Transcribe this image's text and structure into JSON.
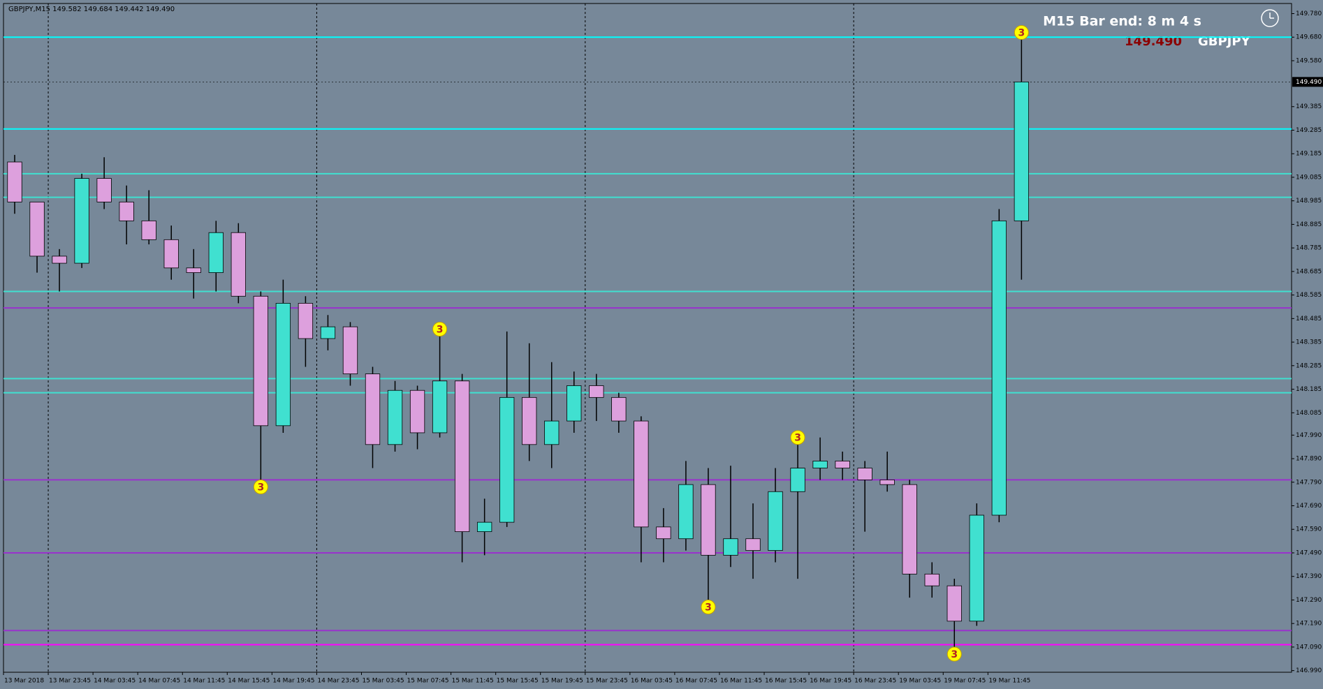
{
  "chart_data": {
    "type": "candlestick",
    "title": "GBPJPY,M15  149.582 149.684 149.442 149.490",
    "timer": "M15 Bar end: 8 m 4 s",
    "symbol": "GBPJPY",
    "current_price": {
      "value": 149.49,
      "label": "149.490"
    },
    "up_color": "#40e0d0",
    "down_color": "#dda0dd",
    "background": "#778899",
    "ylim": [
      146.983,
      149.823
    ],
    "yticks": [
      {
        "value": 149.78,
        "label": "149.780"
      },
      {
        "value": 149.68,
        "label": "149.680"
      },
      {
        "value": 149.58,
        "label": "149.580"
      },
      {
        "value": 149.385,
        "label": "149.385"
      },
      {
        "value": 149.285,
        "label": "149.285"
      },
      {
        "value": 149.185,
        "label": "149.185"
      },
      {
        "value": 149.085,
        "label": "149.085"
      },
      {
        "value": 148.985,
        "label": "148.985"
      },
      {
        "value": 148.885,
        "label": "148.885"
      },
      {
        "value": 148.785,
        "label": "148.785"
      },
      {
        "value": 148.685,
        "label": "148.685"
      },
      {
        "value": 148.585,
        "label": "148.585"
      },
      {
        "value": 148.485,
        "label": "148.485"
      },
      {
        "value": 148.385,
        "label": "148.385"
      },
      {
        "value": 148.285,
        "label": "148.285"
      },
      {
        "value": 148.185,
        "label": "148.185"
      },
      {
        "value": 148.085,
        "label": "148.085"
      },
      {
        "value": 147.99,
        "label": "147.990"
      },
      {
        "value": 147.89,
        "label": "147.890"
      },
      {
        "value": 147.79,
        "label": "147.790"
      },
      {
        "value": 147.69,
        "label": "147.690"
      },
      {
        "value": 147.59,
        "label": "147.590"
      },
      {
        "value": 147.49,
        "label": "147.490"
      },
      {
        "value": 147.39,
        "label": "147.390"
      },
      {
        "value": 147.29,
        "label": "147.290"
      },
      {
        "value": 147.19,
        "label": "147.190"
      },
      {
        "value": 147.09,
        "label": "147.090"
      },
      {
        "value": 146.99,
        "label": "146.990"
      }
    ],
    "time_labels": [
      "13 Mar 2018",
      "13 Mar 23:45",
      "14 Mar 03:45",
      "14 Mar 07:45",
      "14 Mar 11:45",
      "14 Mar 15:45",
      "14 Mar 19:45",
      "14 Mar 23:45",
      "15 Mar 03:45",
      "15 Mar 07:45",
      "15 Mar 11:45",
      "15 Mar 15:45",
      "15 Mar 19:45",
      "15 Mar 23:45",
      "16 Mar 03:45",
      "16 Mar 07:45",
      "16 Mar 11:45",
      "16 Mar 15:45",
      "16 Mar 19:45",
      "16 Mar 23:45",
      "19 Mar 03:45",
      "19 Mar 07:45",
      "19 Mar 11:45"
    ],
    "open": [
      149.15,
      148.98,
      148.75,
      148.72,
      149.08,
      148.98,
      148.9,
      148.82,
      148.7,
      148.68,
      148.85,
      148.58,
      148.03,
      148.55,
      148.4,
      148.45,
      148.25,
      147.95,
      148.18,
      148.0,
      148.22,
      147.58,
      147.62,
      148.15,
      147.95,
      148.05,
      148.2,
      148.15,
      148.05,
      147.6,
      147.55,
      147.78,
      147.48,
      147.55,
      147.5,
      147.75,
      147.85,
      147.88,
      147.85,
      147.8,
      147.78,
      147.4,
      147.35,
      147.2,
      147.65,
      148.9
    ],
    "high": [
      149.18,
      148.98,
      148.78,
      149.1,
      149.17,
      149.05,
      149.03,
      148.88,
      148.78,
      148.9,
      148.89,
      148.6,
      148.65,
      148.58,
      148.5,
      148.47,
      148.28,
      148.22,
      148.2,
      148.44,
      148.25,
      147.72,
      148.43,
      148.38,
      148.3,
      148.26,
      148.25,
      148.17,
      148.07,
      147.68,
      147.88,
      147.85,
      147.86,
      147.7,
      147.85,
      147.98,
      147.98,
      147.92,
      147.88,
      147.92,
      147.8,
      147.45,
      147.38,
      147.7,
      148.95,
      149.7
    ],
    "low": [
      148.93,
      148.68,
      148.6,
      148.7,
      148.95,
      148.8,
      148.8,
      148.65,
      148.57,
      148.6,
      148.55,
      147.77,
      148.0,
      148.28,
      148.35,
      148.2,
      147.85,
      147.92,
      147.93,
      147.98,
      147.45,
      147.48,
      147.6,
      147.88,
      147.85,
      148.0,
      148.05,
      148.0,
      147.45,
      147.45,
      147.5,
      147.26,
      147.43,
      147.38,
      147.45,
      147.38,
      147.8,
      147.8,
      147.58,
      147.75,
      147.3,
      147.3,
      147.06,
      147.18,
      147.62,
      148.65
    ],
    "close": [
      148.98,
      148.75,
      148.72,
      149.08,
      148.98,
      148.9,
      148.82,
      148.7,
      148.68,
      148.85,
      148.58,
      148.03,
      148.55,
      148.4,
      148.45,
      148.25,
      147.95,
      148.18,
      148.0,
      148.22,
      147.58,
      147.62,
      148.15,
      147.95,
      148.05,
      148.2,
      148.15,
      148.05,
      147.6,
      147.55,
      147.78,
      147.48,
      147.55,
      147.5,
      147.75,
      147.85,
      147.88,
      147.85,
      147.8,
      147.78,
      147.4,
      147.35,
      147.2,
      147.65,
      148.9,
      149.49
    ],
    "levels": [
      {
        "value": 149.68,
        "color": "#00ffff"
      },
      {
        "value": 149.29,
        "color": "#00ffff"
      },
      {
        "value": 149.1,
        "color": "#40e0d0"
      },
      {
        "value": 149.0,
        "color": "#40e0d0"
      },
      {
        "value": 148.6,
        "color": "#40e0d0"
      },
      {
        "value": 148.23,
        "color": "#40e0d0"
      },
      {
        "value": 148.17,
        "color": "#40e0d0"
      },
      {
        "value": 148.53,
        "color": "#9932cc"
      },
      {
        "value": 147.8,
        "color": "#9932cc"
      },
      {
        "value": 147.49,
        "color": "#9932cc"
      },
      {
        "value": 147.16,
        "color": "#9932cc"
      },
      {
        "value": 147.1,
        "color": "#ff00ff"
      }
    ],
    "signals": [
      {
        "label": "3",
        "index": 11,
        "value": 147.77
      },
      {
        "label": "3",
        "index": 19,
        "value": 148.44
      },
      {
        "label": "3",
        "index": 31,
        "value": 147.26
      },
      {
        "label": "3",
        "index": 35,
        "value": 147.98
      },
      {
        "label": "3",
        "index": 42,
        "value": 147.06
      },
      {
        "label": "3",
        "index": 45,
        "value": 149.7
      }
    ]
  }
}
